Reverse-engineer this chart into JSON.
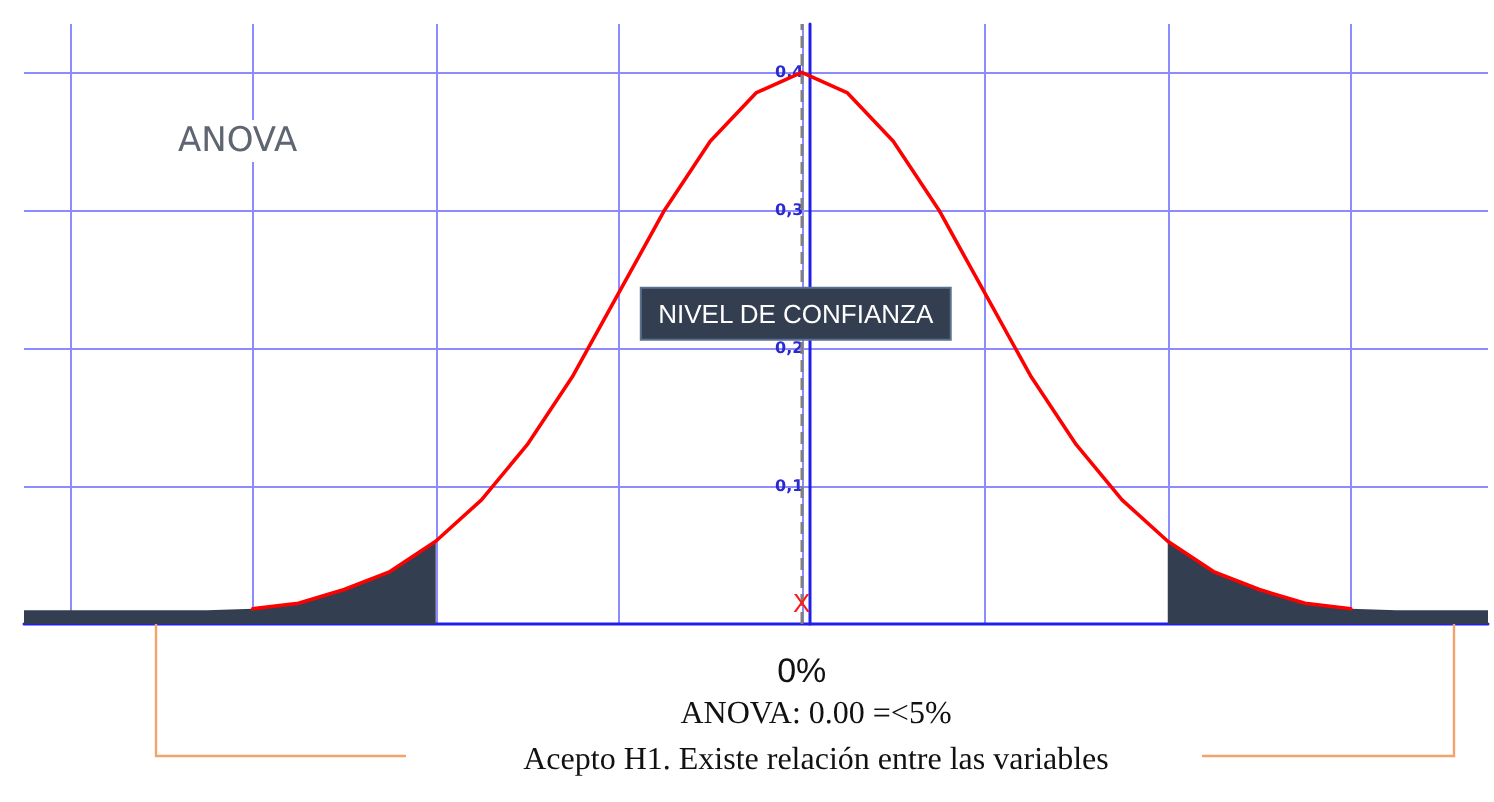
{
  "chart_data": {
    "type": "line",
    "title": "ANOVA",
    "categories": [
      null,
      null,
      null,
      null,
      null,
      null,
      null,
      null,
      null,
      null,
      null,
      null,
      null,
      null,
      null,
      null,
      null,
      "0%",
      null,
      null,
      null,
      null,
      null,
      null,
      null,
      null,
      null,
      null,
      null,
      null,
      null,
      null,
      null
    ],
    "ylim": [
      0,
      0.435
    ],
    "yticks": [
      {
        "value": 0.1,
        "label": "0,1"
      },
      {
        "value": 0.2,
        "label": "0,2"
      },
      {
        "value": 0.3,
        "label": "0,3"
      },
      {
        "value": 0.4,
        "label": "0,4"
      }
    ],
    "grid": true,
    "marker": "none",
    "line_style": "solid",
    "series": [
      {
        "type": "area",
        "color": "#333f50",
        "values": [
          0.01,
          0.01,
          0.01,
          0.01,
          0.01,
          0.011,
          0.015,
          0.025,
          0.038,
          0.06,
          null,
          null,
          null,
          null,
          null,
          null,
          null,
          null,
          null,
          null,
          null,
          null,
          null,
          null,
          null,
          null,
          null,
          null,
          null,
          null,
          null,
          null,
          null
        ]
      },
      {
        "type": "area",
        "color": "#333f50",
        "values": [
          null,
          null,
          null,
          null,
          null,
          null,
          null,
          null,
          null,
          null,
          null,
          null,
          null,
          null,
          null,
          null,
          null,
          null,
          null,
          null,
          null,
          null,
          null,
          null,
          null,
          0.06,
          0.038,
          0.025,
          0.015,
          0.011,
          0.01,
          0.01,
          0.01
        ]
      },
      {
        "color": "#ff0000",
        "values": [
          null,
          null,
          null,
          null,
          null,
          0.011,
          0.015,
          0.025,
          0.038,
          0.06,
          0.09,
          0.13,
          0.18,
          0.24,
          0.3,
          0.35,
          0.385,
          0.4,
          0.385,
          0.35,
          0.3,
          0.24,
          0.18,
          0.13,
          0.09,
          0.06,
          0.038,
          0.025,
          0.015,
          0.011,
          null,
          null,
          null
        ]
      }
    ],
    "ref_lines": [
      {
        "axis": "x",
        "value": "0%",
        "color": "#7f7f7f",
        "line_style": "dashed"
      }
    ],
    "annotations": [
      {
        "text": "X",
        "x": "0%",
        "y": 0.015
      },
      {
        "text": "NIVEL DE CONFIANZA",
        "x": "0%",
        "y": 0.225
      },
      "ANOVA: 0.00 =<5%",
      "Acepto H1. Existe relación entre las variables"
    ]
  }
}
